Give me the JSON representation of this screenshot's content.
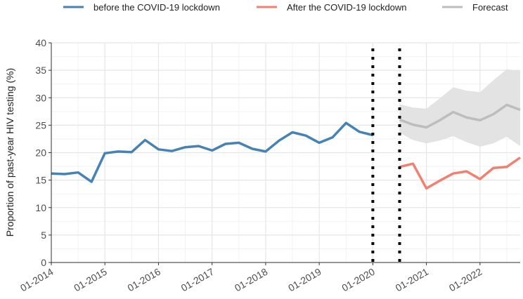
{
  "chart_data": {
    "type": "line",
    "title": "",
    "xlabel": "",
    "ylabel": "Proportion of past-year HIV testing  (%)",
    "ylim": [
      0,
      40
    ],
    "yticks": [
      0,
      5,
      10,
      15,
      20,
      25,
      30,
      35,
      40
    ],
    "xlim": [
      "2014-01",
      "2022-10"
    ],
    "xticks": [
      {
        "label": "01-2014",
        "date": "2014-01"
      },
      {
        "label": "01-2015",
        "date": "2015-01"
      },
      {
        "label": "01-2016",
        "date": "2016-01"
      },
      {
        "label": "01-2017",
        "date": "2017-01"
      },
      {
        "label": "01-2018",
        "date": "2018-01"
      },
      {
        "label": "01-2019",
        "date": "2019-01"
      },
      {
        "label": "01-2020",
        "date": "2020-01"
      },
      {
        "label": "01-2021",
        "date": "2021-01"
      },
      {
        "label": "01-2022",
        "date": "2022-01"
      }
    ],
    "grid": true,
    "legend_position": "top",
    "vlines": [
      {
        "date": "2020-01",
        "style": "dotted",
        "color": "#000000"
      },
      {
        "date": "2020-07",
        "style": "dotted",
        "color": "#000000"
      }
    ],
    "series": [
      {
        "name": "before the COVID-19 lockdown",
        "color": "#4682b4",
        "points": [
          {
            "x": "2014-01",
            "y": 16.2
          },
          {
            "x": "2014-04",
            "y": 16.1
          },
          {
            "x": "2014-07",
            "y": 16.4
          },
          {
            "x": "2014-10",
            "y": 14.7
          },
          {
            "x": "2015-01",
            "y": 19.9
          },
          {
            "x": "2015-04",
            "y": 20.2
          },
          {
            "x": "2015-07",
            "y": 20.1
          },
          {
            "x": "2015-10",
            "y": 22.3
          },
          {
            "x": "2016-01",
            "y": 20.6
          },
          {
            "x": "2016-04",
            "y": 20.3
          },
          {
            "x": "2016-07",
            "y": 21.0
          },
          {
            "x": "2016-10",
            "y": 21.2
          },
          {
            "x": "2017-01",
            "y": 20.4
          },
          {
            "x": "2017-04",
            "y": 21.6
          },
          {
            "x": "2017-07",
            "y": 21.8
          },
          {
            "x": "2017-10",
            "y": 20.7
          },
          {
            "x": "2018-01",
            "y": 20.2
          },
          {
            "x": "2018-04",
            "y": 22.2
          },
          {
            "x": "2018-07",
            "y": 23.7
          },
          {
            "x": "2018-10",
            "y": 23.1
          },
          {
            "x": "2019-01",
            "y": 21.8
          },
          {
            "x": "2019-04",
            "y": 22.8
          },
          {
            "x": "2019-07",
            "y": 25.4
          },
          {
            "x": "2019-10",
            "y": 23.8
          },
          {
            "x": "2020-01",
            "y": 23.2
          }
        ]
      },
      {
        "name": "After the COVID-19 lockdown",
        "color": "#f08070",
        "points": [
          {
            "x": "2020-07",
            "y": 17.4
          },
          {
            "x": "2020-10",
            "y": 18.0
          },
          {
            "x": "2021-01",
            "y": 13.5
          },
          {
            "x": "2021-04",
            "y": 14.9
          },
          {
            "x": "2021-07",
            "y": 16.2
          },
          {
            "x": "2021-10",
            "y": 16.6
          },
          {
            "x": "2022-01",
            "y": 15.2
          },
          {
            "x": "2022-04",
            "y": 17.2
          },
          {
            "x": "2022-07",
            "y": 17.4
          },
          {
            "x": "2022-10",
            "y": 19.1
          }
        ]
      },
      {
        "name": "Forecast",
        "color": "#bdbdbd",
        "band_color": "#e3e3e3",
        "points": [
          {
            "x": "2020-07",
            "y": 26.0,
            "lo": 23.6,
            "hi": 28.8
          },
          {
            "x": "2020-10",
            "y": 25.1,
            "lo": 22.3,
            "hi": 28.2
          },
          {
            "x": "2021-01",
            "y": 24.6,
            "lo": 21.7,
            "hi": 28.0
          },
          {
            "x": "2021-04",
            "y": 25.9,
            "lo": 22.2,
            "hi": 29.9
          },
          {
            "x": "2021-07",
            "y": 27.4,
            "lo": 23.0,
            "hi": 31.9
          },
          {
            "x": "2021-10",
            "y": 26.4,
            "lo": 21.9,
            "hi": 31.3
          },
          {
            "x": "2022-01",
            "y": 25.9,
            "lo": 21.1,
            "hi": 31.0
          },
          {
            "x": "2022-04",
            "y": 27.0,
            "lo": 21.7,
            "hi": 33.2
          },
          {
            "x": "2022-07",
            "y": 28.7,
            "lo": 22.9,
            "hi": 35.2
          },
          {
            "x": "2022-10",
            "y": 27.8,
            "lo": 21.2,
            "hi": 34.9
          }
        ]
      }
    ]
  }
}
